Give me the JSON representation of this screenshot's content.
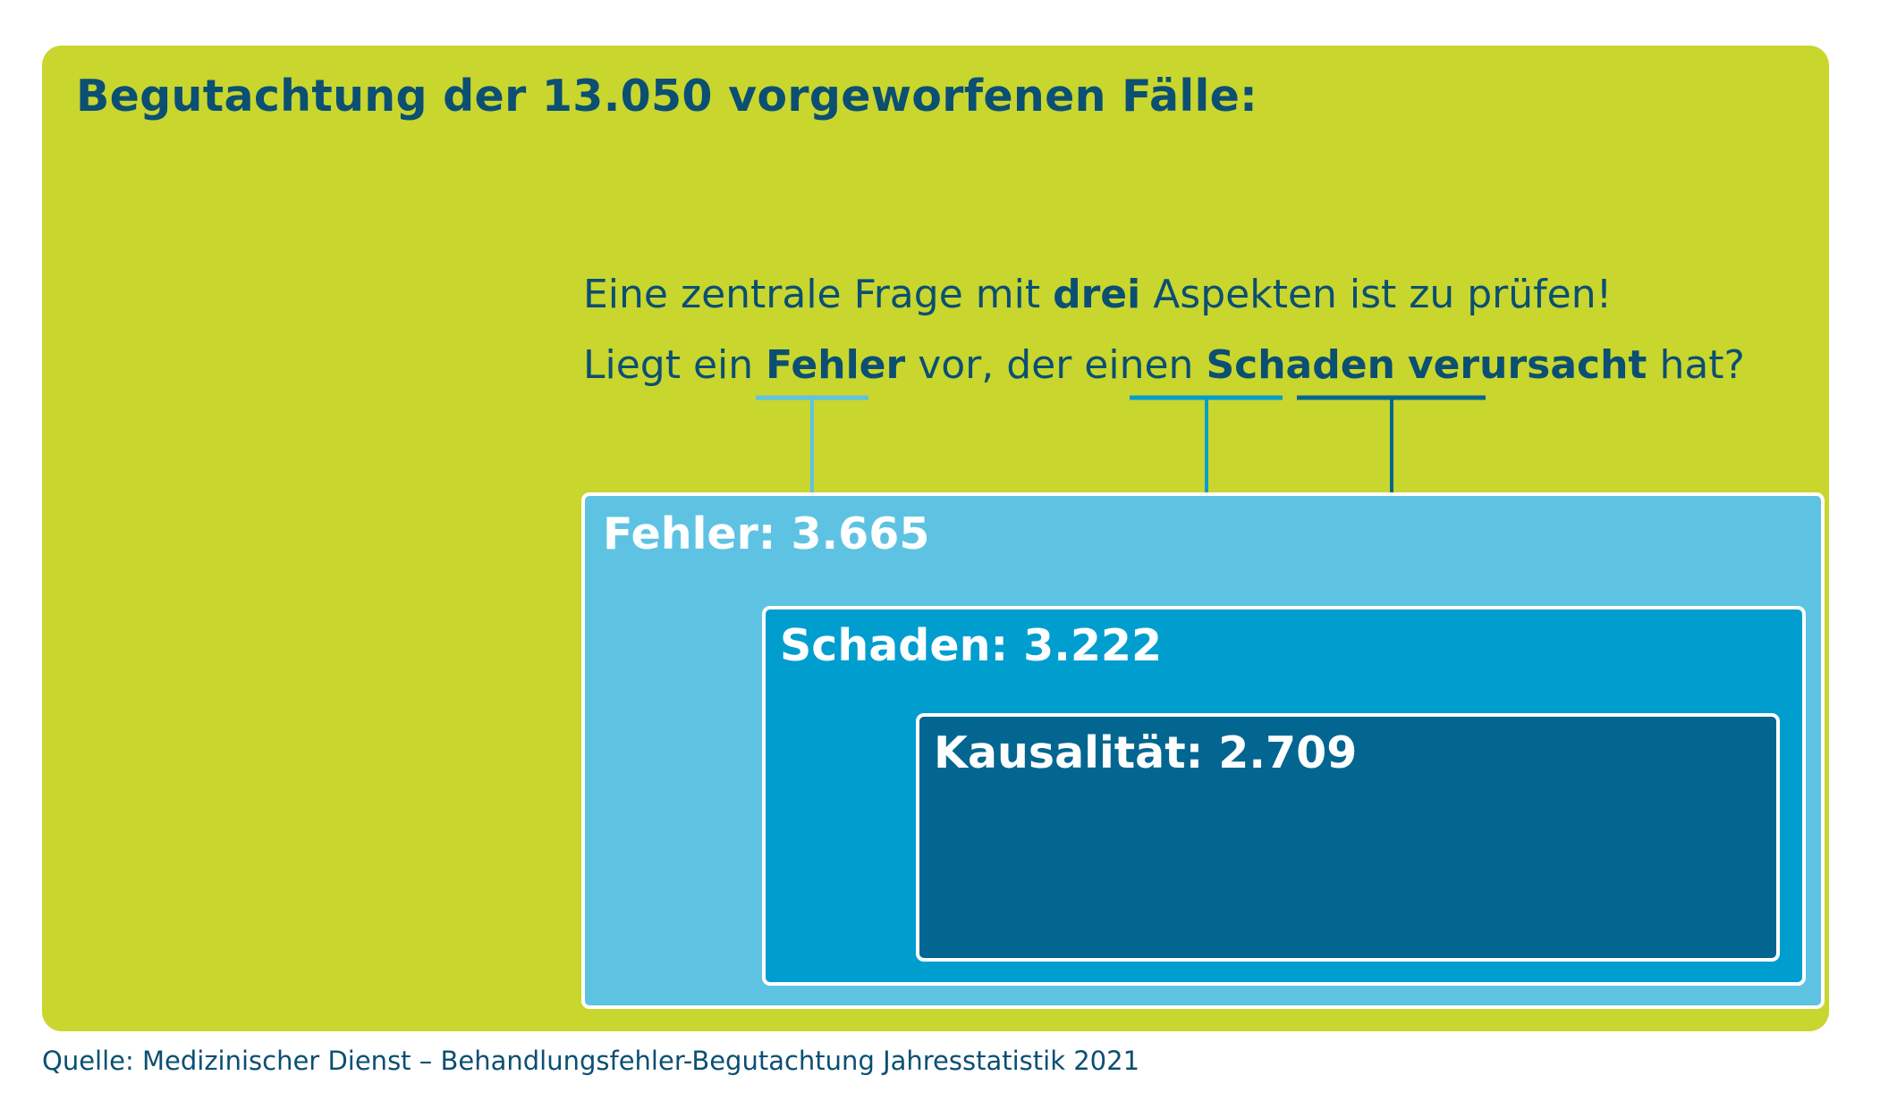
{
  "title": "Begutachtung der 13.050 vorgeworfenen Fälle:",
  "question": {
    "line1": {
      "before": "Eine zentrale Frage mit ",
      "bold": "drei",
      "after": " Aspekten ist zu prüfen!"
    },
    "line2": {
      "before": "Liegt ein ",
      "term1": "Fehler",
      "middle": " vor, der einen ",
      "term2": "Schaden",
      "space": " ",
      "term3": "verursacht",
      "after": " hat?"
    }
  },
  "boxes": [
    {
      "label": "Fehler: 3.665",
      "color": "#5ec3e2"
    },
    {
      "label": "Schaden: 3.222",
      "color": "#009ecf"
    },
    {
      "label": "Kausalität: 2.709",
      "color": "#026690"
    }
  ],
  "colors": {
    "background_panel": "#c8d62e",
    "text_dark": "#0b4f73",
    "connector_fehler": "#5ec3e2",
    "connector_schaden": "#009ecf",
    "connector_kausal": "#026690"
  },
  "source": "Quelle: Medizinischer Dienst – Behandlungsfehler-Begutachtung Jahresstatistik 2021"
}
